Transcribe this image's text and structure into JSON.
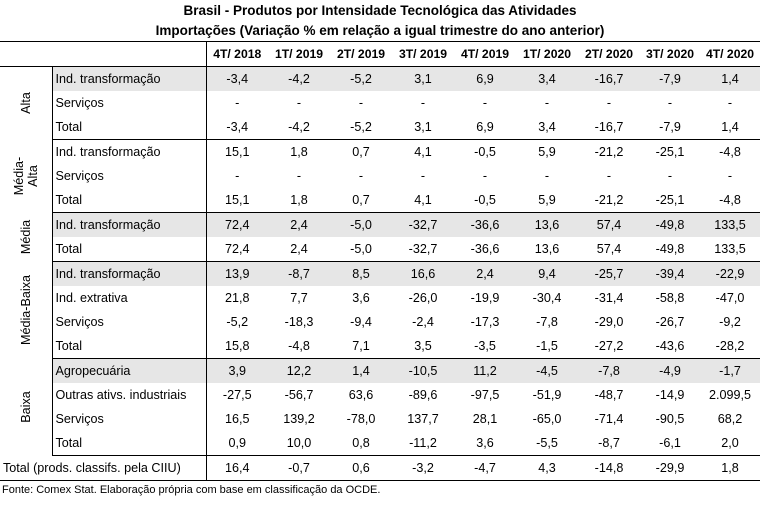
{
  "title_line1": "Brasil - Produtos por Intensidade Tecnológica das Atividades",
  "title_line2": "Importações (Variação % em relação a igual trimestre do ano anterior)",
  "columns": [
    "4T/ 2018",
    "1T/ 2019",
    "2T/ 2019",
    "3T/ 2019",
    "4T/ 2019",
    "1T/ 2020",
    "2T/ 2020",
    "3T/ 2020",
    "4T/ 2020"
  ],
  "groups": [
    {
      "label_lines": [
        "Alta"
      ],
      "rows": [
        {
          "label": "Ind. transformação",
          "values": [
            "-3,4",
            "-4,2",
            "-5,2",
            "3,1",
            "6,9",
            "3,4",
            "-16,7",
            "-7,9",
            "1,4"
          ],
          "shaded": true
        },
        {
          "label": "Serviços",
          "values": [
            "-",
            "-",
            "-",
            "-",
            "-",
            "-",
            "-",
            "-",
            "-"
          ],
          "shaded": false
        },
        {
          "label": "Total",
          "values": [
            "-3,4",
            "-4,2",
            "-5,2",
            "3,1",
            "6,9",
            "3,4",
            "-16,7",
            "-7,9",
            "1,4"
          ],
          "shaded": false
        }
      ]
    },
    {
      "label_lines": [
        "Média-",
        "Alta"
      ],
      "rows": [
        {
          "label": "Ind. transformação",
          "values": [
            "15,1",
            "1,8",
            "0,7",
            "4,1",
            "-0,5",
            "5,9",
            "-21,2",
            "-25,1",
            "-4,8"
          ],
          "shaded": false
        },
        {
          "label": "Serviços",
          "values": [
            "-",
            "-",
            "-",
            "-",
            "-",
            "-",
            "-",
            "-",
            "-"
          ],
          "shaded": false
        },
        {
          "label": "Total",
          "values": [
            "15,1",
            "1,8",
            "0,7",
            "4,1",
            "-0,5",
            "5,9",
            "-21,2",
            "-25,1",
            "-4,8"
          ],
          "shaded": false
        }
      ]
    },
    {
      "label_lines": [
        "Média"
      ],
      "rows": [
        {
          "label": "Ind. transformação",
          "values": [
            "72,4",
            "2,4",
            "-5,0",
            "-32,7",
            "-36,6",
            "13,6",
            "57,4",
            "-49,8",
            "133,5"
          ],
          "shaded": true
        },
        {
          "label": "Total",
          "values": [
            "72,4",
            "2,4",
            "-5,0",
            "-32,7",
            "-36,6",
            "13,6",
            "57,4",
            "-49,8",
            "133,5"
          ],
          "shaded": false
        }
      ]
    },
    {
      "label_lines": [
        "Média-Baixa"
      ],
      "rows": [
        {
          "label": "Ind. transformação",
          "values": [
            "13,9",
            "-8,7",
            "8,5",
            "16,6",
            "2,4",
            "9,4",
            "-25,7",
            "-39,4",
            "-22,9"
          ],
          "shaded": true
        },
        {
          "label": "Ind. extrativa",
          "values": [
            "21,8",
            "7,7",
            "3,6",
            "-26,0",
            "-19,9",
            "-30,4",
            "-31,4",
            "-58,8",
            "-47,0"
          ],
          "shaded": false
        },
        {
          "label": "Serviços",
          "values": [
            "-5,2",
            "-18,3",
            "-9,4",
            "-2,4",
            "-17,3",
            "-7,8",
            "-29,0",
            "-26,7",
            "-9,2"
          ],
          "shaded": false
        },
        {
          "label": "Total",
          "values": [
            "15,8",
            "-4,8",
            "7,1",
            "3,5",
            "-3,5",
            "-1,5",
            "-27,2",
            "-43,6",
            "-28,2"
          ],
          "shaded": false
        }
      ]
    },
    {
      "label_lines": [
        "Baixa"
      ],
      "rows": [
        {
          "label": "Agropecuária",
          "values": [
            "3,9",
            "12,2",
            "1,4",
            "-10,5",
            "11,2",
            "-4,5",
            "-7,8",
            "-4,9",
            "-1,7"
          ],
          "shaded": true
        },
        {
          "label": "Outras ativs. industriais",
          "values": [
            "-27,5",
            "-56,7",
            "63,6",
            "-89,6",
            "-97,5",
            "-51,9",
            "-48,7",
            "-14,9",
            "2.099,5"
          ],
          "shaded": false
        },
        {
          "label": "Serviços",
          "values": [
            "16,5",
            "139,2",
            "-78,0",
            "137,7",
            "28,1",
            "-65,0",
            "-71,4",
            "-90,5",
            "68,2"
          ],
          "shaded": false
        },
        {
          "label": "Total",
          "values": [
            "0,9",
            "10,0",
            "0,8",
            "-11,2",
            "3,6",
            "-5,5",
            "-8,7",
            "-6,1",
            "2,0"
          ],
          "shaded": false
        }
      ]
    }
  ],
  "total_row": {
    "label": "Total (prods. classifs. pela CIIU)",
    "values": [
      "16,4",
      "-0,7",
      "0,6",
      "-3,2",
      "-4,7",
      "4,3",
      "-14,8",
      "-29,9",
      "1,8"
    ]
  },
  "source": "Fonte: Comex Stat. Elaboração própria com base em classificação da OCDE.",
  "colors": {
    "shade": "#e6e6e6",
    "border": "#000000"
  }
}
